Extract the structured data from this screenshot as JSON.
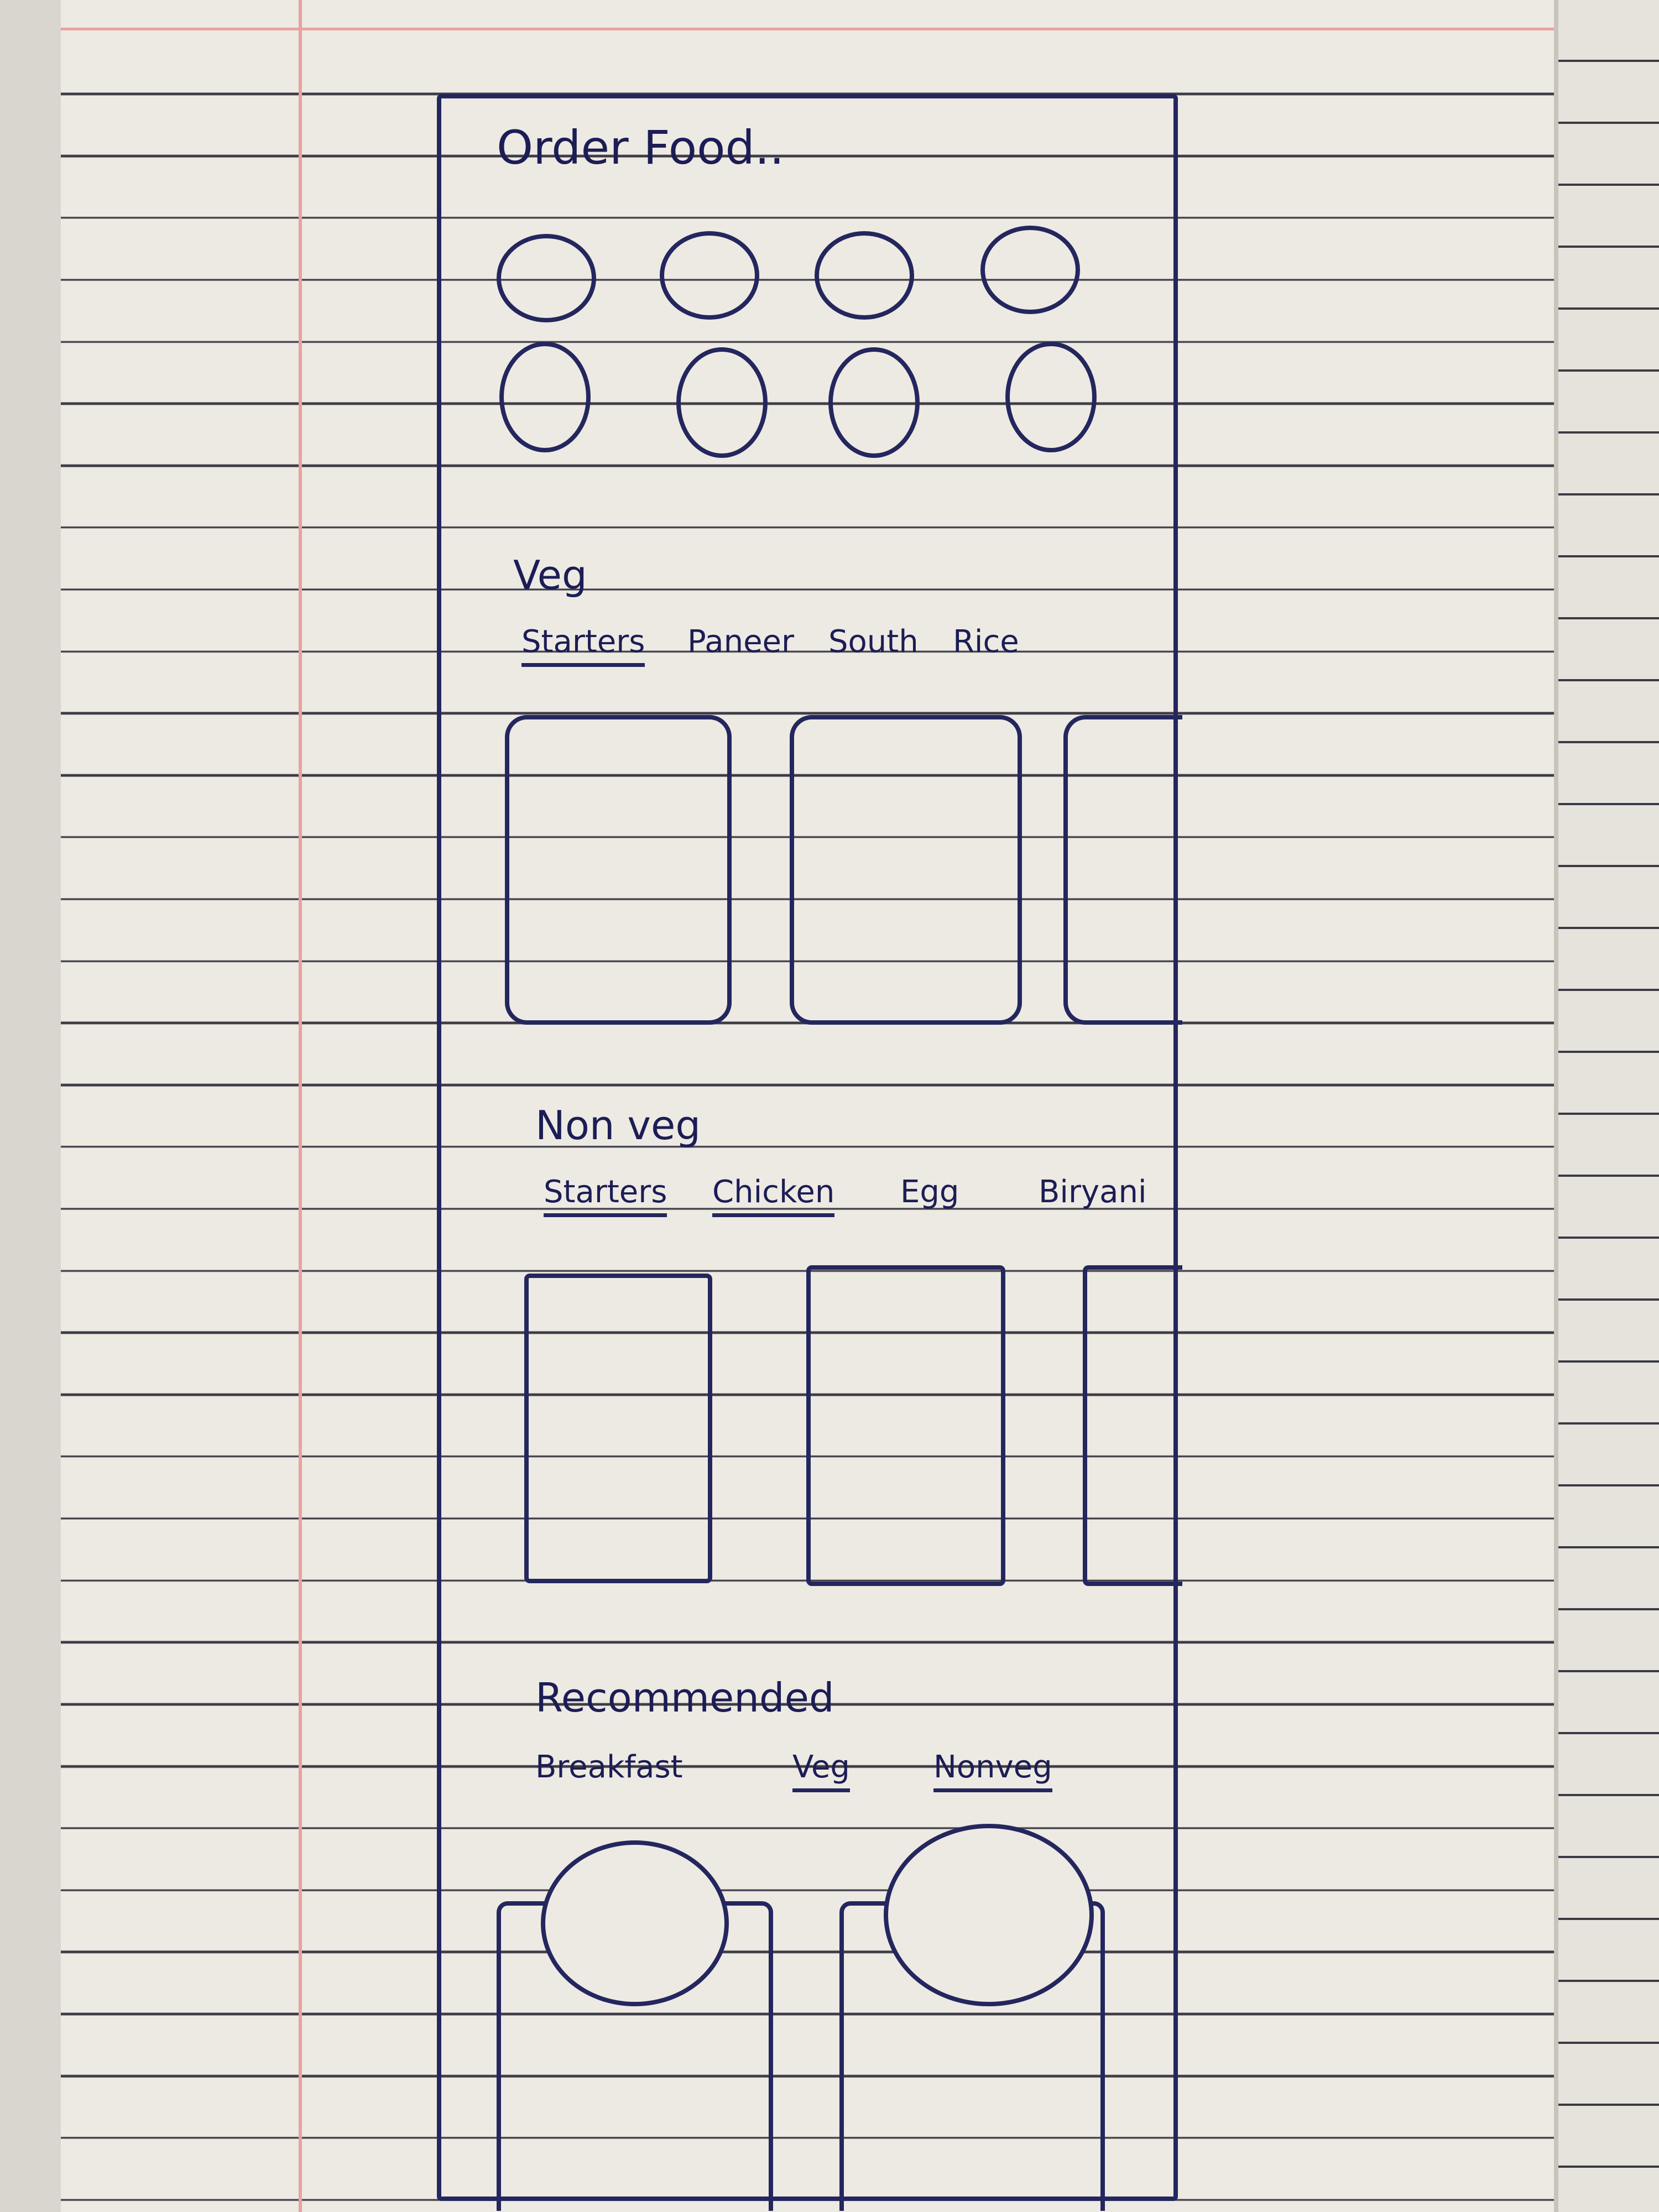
{
  "header": {
    "title": "Order Food.."
  },
  "categories": {
    "count": 8
  },
  "veg": {
    "title": "Veg",
    "tabs": [
      "Starters",
      "Paneer",
      "South",
      "Rice"
    ]
  },
  "nonveg": {
    "title": "Non veg",
    "tabs": [
      "Starters",
      "Chicken",
      "Egg",
      "Biryani"
    ]
  },
  "recommended": {
    "title": "Recommended",
    "tabs": [
      "Breakfast",
      "Veg",
      "Nonveg"
    ]
  },
  "colors": {
    "ink": "#24265e",
    "paper": "#edeae3",
    "margin": "#e7a3a0"
  }
}
